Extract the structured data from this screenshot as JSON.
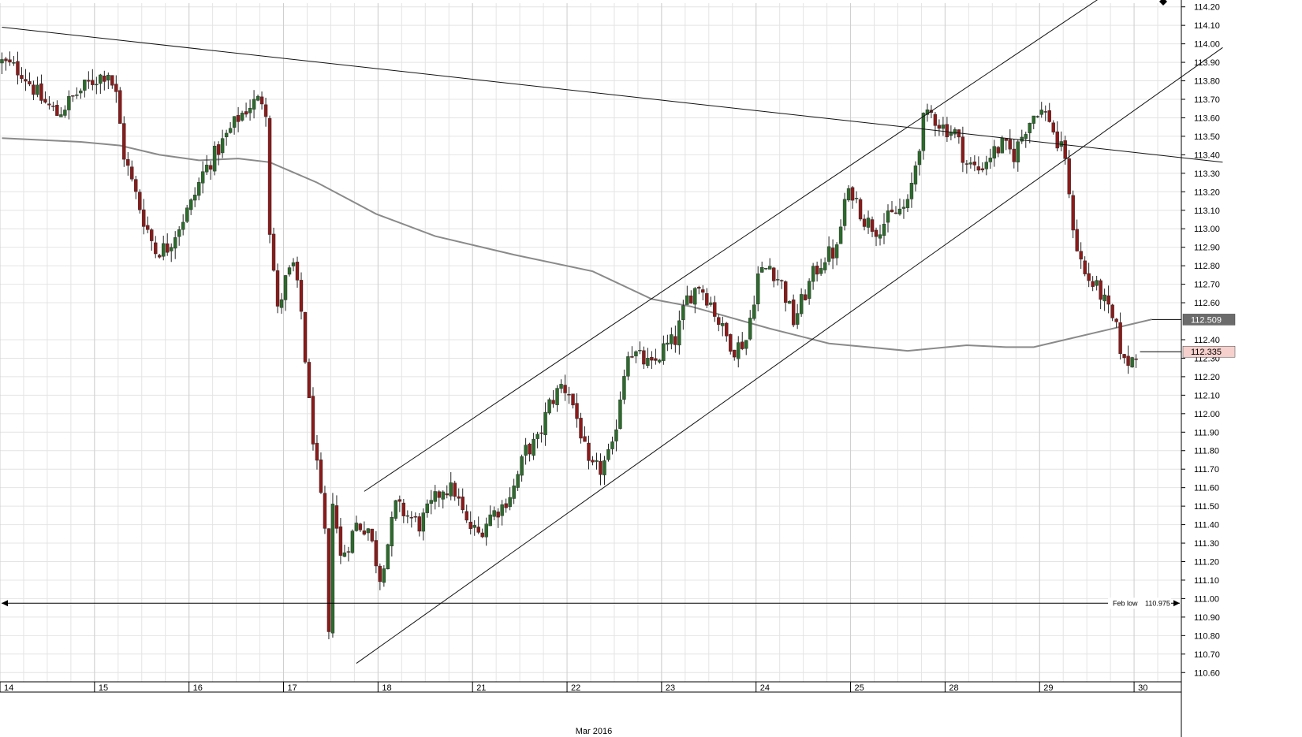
{
  "chart_data": {
    "type": "candlestick",
    "xlabel": "Mar 2016",
    "y_axis": {
      "ylim": [
        110.55,
        114.22
      ],
      "ticks": [
        "110.60",
        "110.70",
        "110.80",
        "110.90",
        "111.00",
        "111.10",
        "111.20",
        "111.30",
        "111.40",
        "111.50",
        "111.60",
        "111.70",
        "111.80",
        "111.90",
        "112.00",
        "112.10",
        "112.20",
        "112.30",
        "112.40",
        "112.60",
        "112.70",
        "112.80",
        "112.90",
        "113.00",
        "113.10",
        "113.20",
        "113.30",
        "113.40",
        "113.50",
        "113.60",
        "113.70",
        "113.80",
        "113.90",
        "114.00",
        "114.10",
        "114.20"
      ]
    },
    "x_axis": {
      "dates": [
        "14",
        "15",
        "16",
        "17",
        "18",
        "21",
        "22",
        "23",
        "24",
        "25",
        "28",
        "29",
        "30"
      ],
      "day_start_index": [
        0,
        24,
        48,
        72,
        96,
        120,
        144,
        168,
        192,
        216,
        240,
        264,
        288
      ],
      "total_bars": 300
    },
    "grid": true,
    "price_tags": [
      {
        "label": "112.509",
        "value": 112.509,
        "color": "#6b6b6b",
        "text_color": "#ffffff"
      },
      {
        "label": "112.335",
        "value": 112.335,
        "color": "#f5d0cc",
        "text_color": "#000000"
      }
    ],
    "annotations": [
      {
        "text": "Feb low",
        "value": "110.975",
        "level": 110.975
      }
    ],
    "trendlines": [
      {
        "name": "resistance",
        "from": [
          0,
          114.09
        ],
        "to": [
          310,
          113.36
        ]
      },
      {
        "name": "channel-upper",
        "from": [
          92,
          111.58
        ],
        "to": [
          279,
          114.25
        ]
      },
      {
        "name": "channel-lower",
        "from": [
          90,
          110.65
        ],
        "to": [
          310,
          113.98
        ]
      }
    ],
    "moving_average_path": [
      [
        0,
        113.49
      ],
      [
        20,
        113.47
      ],
      [
        30,
        113.45
      ],
      [
        40,
        113.4
      ],
      [
        50,
        113.37
      ],
      [
        60,
        113.38
      ],
      [
        68,
        113.36
      ],
      [
        80,
        113.25
      ],
      [
        95,
        113.08
      ],
      [
        110,
        112.96
      ],
      [
        130,
        112.86
      ],
      [
        150,
        112.77
      ],
      [
        165,
        112.62
      ],
      [
        175,
        112.58
      ],
      [
        195,
        112.46
      ],
      [
        210,
        112.38
      ],
      [
        230,
        112.34
      ],
      [
        245,
        112.37
      ],
      [
        255,
        112.36
      ],
      [
        262,
        112.36
      ],
      [
        270,
        112.4
      ],
      [
        280,
        112.45
      ],
      [
        288,
        112.49
      ],
      [
        292,
        112.51
      ]
    ],
    "price_path": [
      [
        0,
        113.9
      ],
      [
        5,
        113.85
      ],
      [
        10,
        113.7
      ],
      [
        14,
        113.62
      ],
      [
        19,
        113.73
      ],
      [
        23,
        113.8
      ],
      [
        27,
        113.85
      ],
      [
        29,
        113.72
      ],
      [
        31,
        113.4
      ],
      [
        33,
        113.25
      ],
      [
        36,
        113.05
      ],
      [
        39,
        112.88
      ],
      [
        42,
        112.9
      ],
      [
        45,
        113.02
      ],
      [
        48,
        113.13
      ],
      [
        51,
        113.3
      ],
      [
        54,
        113.4
      ],
      [
        57,
        113.5
      ],
      [
        60,
        113.6
      ],
      [
        63,
        113.67
      ],
      [
        66,
        113.7
      ],
      [
        67,
        113.65
      ],
      [
        68,
        113.0
      ],
      [
        70,
        112.55
      ],
      [
        72,
        112.72
      ],
      [
        74,
        112.8
      ],
      [
        76,
        112.55
      ],
      [
        78,
        112.05
      ],
      [
        80,
        111.7
      ],
      [
        82,
        111.35
      ],
      [
        83,
        110.78
      ],
      [
        84,
        111.55
      ],
      [
        86,
        111.22
      ],
      [
        88,
        111.3
      ],
      [
        90,
        111.4
      ],
      [
        93,
        111.38
      ],
      [
        96,
        111.12
      ],
      [
        98,
        111.3
      ],
      [
        100,
        111.5
      ],
      [
        103,
        111.45
      ],
      [
        106,
        111.4
      ],
      [
        109,
        111.5
      ],
      [
        112,
        111.6
      ],
      [
        115,
        111.58
      ],
      [
        118,
        111.4
      ],
      [
        121,
        111.35
      ],
      [
        124,
        111.45
      ],
      [
        127,
        111.5
      ],
      [
        130,
        111.6
      ],
      [
        133,
        111.8
      ],
      [
        136,
        111.85
      ],
      [
        139,
        112.05
      ],
      [
        142,
        112.15
      ],
      [
        144,
        112.12
      ],
      [
        147,
        111.9
      ],
      [
        149,
        111.7
      ],
      [
        152,
        111.7
      ],
      [
        155,
        111.8
      ],
      [
        157,
        112.1
      ],
      [
        159,
        112.35
      ],
      [
        162,
        112.3
      ],
      [
        165,
        112.25
      ],
      [
        168,
        112.35
      ],
      [
        171,
        112.4
      ],
      [
        174,
        112.62
      ],
      [
        177,
        112.7
      ],
      [
        180,
        112.6
      ],
      [
        183,
        112.45
      ],
      [
        186,
        112.35
      ],
      [
        189,
        112.4
      ],
      [
        192,
        112.75
      ],
      [
        195,
        112.8
      ],
      [
        198,
        112.7
      ],
      [
        201,
        112.5
      ],
      [
        203,
        112.6
      ],
      [
        206,
        112.75
      ],
      [
        209,
        112.85
      ],
      [
        212,
        112.88
      ],
      [
        214,
        113.15
      ],
      [
        216,
        113.2
      ],
      [
        219,
        113.05
      ],
      [
        222,
        113.0
      ],
      [
        225,
        113.05
      ],
      [
        228,
        113.1
      ],
      [
        230,
        113.12
      ],
      [
        232,
        113.35
      ],
      [
        234,
        113.58
      ],
      [
        236,
        113.62
      ],
      [
        239,
        113.55
      ],
      [
        242,
        113.52
      ],
      [
        245,
        113.35
      ],
      [
        248,
        113.32
      ],
      [
        251,
        113.4
      ],
      [
        254,
        113.45
      ],
      [
        257,
        113.4
      ],
      [
        260,
        113.55
      ],
      [
        263,
        113.65
      ],
      [
        266,
        113.6
      ],
      [
        268,
        113.45
      ],
      [
        270,
        113.4
      ],
      [
        271,
        113.15
      ],
      [
        273,
        112.9
      ],
      [
        275,
        112.75
      ],
      [
        277,
        112.7
      ],
      [
        279,
        112.65
      ],
      [
        281,
        112.55
      ],
      [
        283,
        112.45
      ],
      [
        285,
        112.27
      ],
      [
        287,
        112.3
      ],
      [
        288,
        112.335
      ]
    ]
  }
}
